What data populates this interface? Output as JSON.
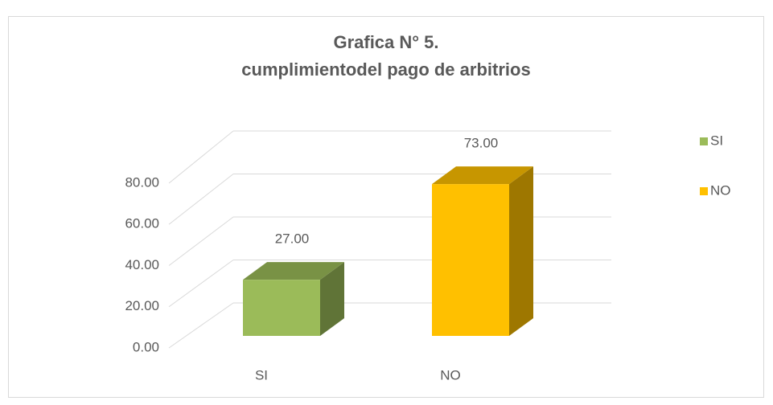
{
  "chart_data": {
    "type": "bar3d",
    "title": [
      "Grafica N° 5.",
      "cumplimientodel pago de arbitrios"
    ],
    "categories": [
      "SI",
      "NO"
    ],
    "values": [
      27,
      73
    ],
    "value_labels": [
      "27.00",
      "73.00"
    ],
    "colors": [
      "#9bbb59",
      "#ffc000"
    ],
    "ylim": [
      0,
      80
    ],
    "yticks": [
      {
        "value": 0,
        "label": "0.00"
      },
      {
        "value": 20,
        "label": "20.00"
      },
      {
        "value": 40,
        "label": "40.00"
      },
      {
        "value": 60,
        "label": "60.00"
      },
      {
        "value": 80,
        "label": "80.00"
      }
    ],
    "grid": true,
    "legend": "right"
  }
}
